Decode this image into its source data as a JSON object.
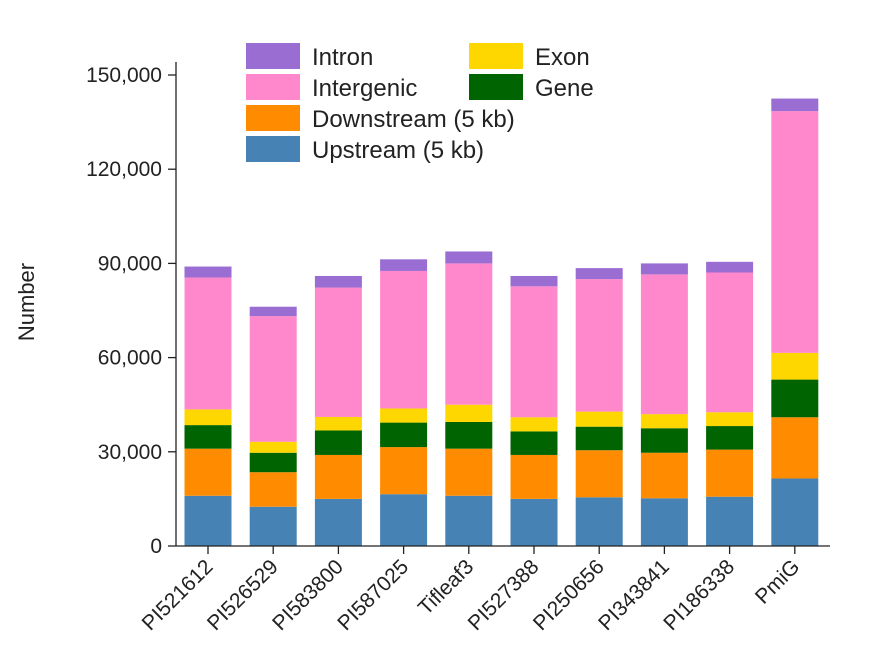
{
  "chart_data": {
    "type": "bar",
    "stacked": true,
    "title": "",
    "xlabel": "",
    "ylabel": "Number",
    "ylim": [
      0,
      150000
    ],
    "yticks": [
      0,
      30000,
      60000,
      90000,
      120000,
      150000
    ],
    "ytick_labels": [
      "0",
      "30,000",
      "60,000",
      "90,000",
      "120,000",
      "150,000"
    ],
    "grid": false,
    "legend_position": "top",
    "categories": [
      "PI521612",
      "PI526529",
      "PI583800",
      "PI587025",
      "Tifleaf3",
      "PI527388",
      "PI250656",
      "PI343841",
      "PI186338",
      "PmiG"
    ],
    "series": [
      {
        "name": "Upstream (5 kb)",
        "color": "#4682B4",
        "values": [
          16000,
          12500,
          15000,
          16500,
          16000,
          15000,
          15500,
          15200,
          15700,
          21500
        ]
      },
      {
        "name": "Downstream (5 kb)",
        "color": "#FF8C00",
        "values": [
          15000,
          11000,
          14000,
          15000,
          15000,
          14000,
          15000,
          14500,
          15000,
          19500
        ]
      },
      {
        "name": "Gene",
        "color": "#006400",
        "values": [
          7500,
          6200,
          7800,
          7800,
          8500,
          7500,
          7500,
          7800,
          7500,
          12000
        ]
      },
      {
        "name": "Exon",
        "color": "#FFD700",
        "values": [
          5000,
          3500,
          4300,
          4500,
          5500,
          4500,
          4800,
          4500,
          4400,
          8500
        ]
      },
      {
        "name": "Intergenic",
        "color": "#FF88CC",
        "values": [
          42000,
          40000,
          41200,
          43800,
          45000,
          41700,
          42200,
          44500,
          44500,
          77000
        ]
      },
      {
        "name": "Intron",
        "color": "#9A6DD3",
        "values": [
          3500,
          3000,
          3700,
          3700,
          3800,
          3300,
          3500,
          3500,
          3400,
          4000
        ]
      }
    ]
  }
}
